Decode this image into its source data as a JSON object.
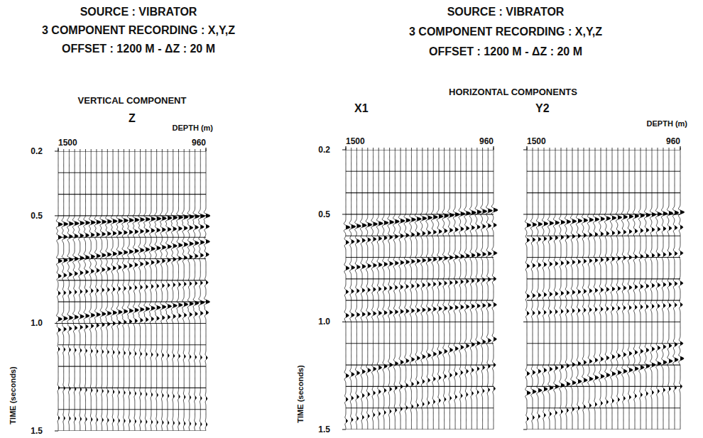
{
  "headers": [
    {
      "lines": [
        "SOURCE : VIBRATOR",
        "3 COMPONENT RECORDING : X,Y,Z",
        "OFFSET : 1200 M - ΔZ : 20 M"
      ]
    },
    {
      "lines": [
        "SOURCE : VIBRATOR",
        "3 COMPONENT RECORDING : X,Y,Z",
        "OFFSET : 1200 M - ΔZ : 20 M"
      ]
    }
  ],
  "group_titles": [
    {
      "text": "VERTICAL COMPONENT",
      "panels": [
        0
      ]
    },
    {
      "text": "HORIZONTAL COMPONENTS",
      "panels": [
        1,
        2
      ]
    }
  ],
  "chart_data": [
    {
      "type": "wiggle",
      "title": "Z",
      "x_label": "DEPTH (m)",
      "y_label": "TIME (seconds)",
      "xlim": [
        1500,
        960
      ],
      "xticks": [
        1500,
        960
      ],
      "ylim": [
        0.2,
        1.5
      ],
      "yticks": [
        0.2,
        0.5,
        {
          "value": 1,
          "label": "1.0"
        },
        1.5
      ],
      "grid": true,
      "timing_lines": [
        0.2,
        0.3,
        0.4,
        0.5,
        0.6,
        0.7,
        0.8,
        0.9,
        1.0,
        1.1,
        1.2,
        1.3,
        1.4,
        1.5
      ],
      "tick_labels": true,
      "x": [
        1500,
        1480,
        1460,
        1440,
        1420,
        1400,
        1380,
        1360,
        1340,
        1320,
        1300,
        1280,
        1260,
        1240,
        1220,
        1200,
        1180,
        1160,
        1140,
        1120,
        1100,
        1080,
        1060,
        1040,
        1020,
        1000,
        980,
        960
      ],
      "events": [
        {
          "x": [
            1500,
            960
          ],
          "values": [
            0.54,
            0.5
          ],
          "amplitude": 1.0
        },
        {
          "x": [
            1500,
            960
          ],
          "values": [
            0.6,
            0.55
          ],
          "amplitude": 0.8
        },
        {
          "x": [
            1500,
            960
          ],
          "values": [
            0.71,
            0.62
          ],
          "amplitude": 0.9
        },
        {
          "x": [
            1500,
            960
          ],
          "values": [
            0.78,
            0.68
          ],
          "amplitude": 0.7
        },
        {
          "x": [
            1500,
            960
          ],
          "values": [
            0.86,
            0.81
          ],
          "amplitude": 0.5
        },
        {
          "x": [
            1500,
            960
          ],
          "values": [
            0.98,
            0.9
          ],
          "amplitude": 0.9
        },
        {
          "x": [
            1500,
            960
          ],
          "values": [
            1.03,
            0.95
          ],
          "amplitude": 0.6
        },
        {
          "x": [
            1500,
            960
          ],
          "values": [
            1.12,
            1.16
          ],
          "amplitude": 0.35
        },
        {
          "x": [
            1500,
            960
          ],
          "values": [
            1.3,
            1.35
          ],
          "amplitude": 0.3
        },
        {
          "x": [
            1500,
            960
          ],
          "values": [
            1.44,
            1.47
          ],
          "amplitude": 0.3
        }
      ]
    },
    {
      "type": "wiggle",
      "title": "X1",
      "y_label": "TIME (seconds)",
      "xlim": [
        1500,
        960
      ],
      "xticks": [
        1500,
        960
      ],
      "ylim": [
        0.2,
        1.5
      ],
      "yticks": [
        0.2,
        0.5,
        {
          "value": 1,
          "label": "1.0"
        },
        1.5
      ],
      "grid": true,
      "timing_lines": [
        0.2,
        0.3,
        0.4,
        0.5,
        0.6,
        0.7,
        0.8,
        0.9,
        1.0,
        1.1,
        1.2,
        1.3,
        1.4,
        1.5
      ],
      "tick_labels": true,
      "x": [
        1500,
        1480,
        1460,
        1440,
        1420,
        1400,
        1380,
        1360,
        1340,
        1320,
        1300,
        1280,
        1260,
        1240,
        1220,
        1200,
        1180,
        1160,
        1140,
        1120,
        1100,
        1080,
        1060,
        1040,
        1020,
        1000,
        980,
        960
      ],
      "events": [
        {
          "x": [
            1500,
            960
          ],
          "values": [
            0.56,
            0.48
          ],
          "amplitude": 1.0
        },
        {
          "x": [
            1500,
            960
          ],
          "values": [
            0.63,
            0.55
          ],
          "amplitude": 0.7
        },
        {
          "x": [
            1500,
            960
          ],
          "values": [
            0.75,
            0.68
          ],
          "amplitude": 0.8
        },
        {
          "x": [
            1500,
            960
          ],
          "values": [
            0.86,
            0.8
          ],
          "amplitude": 0.6
        },
        {
          "x": [
            1500,
            960
          ],
          "values": [
            0.97,
            0.92
          ],
          "amplitude": 0.7
        },
        {
          "x": [
            1500,
            960
          ],
          "values": [
            1.25,
            1.08
          ],
          "amplitude": 0.7
        },
        {
          "x": [
            1500,
            960
          ],
          "values": [
            1.36,
            1.2
          ],
          "amplitude": 0.5
        },
        {
          "x": [
            1500,
            960
          ],
          "values": [
            1.46,
            1.31
          ],
          "amplitude": 0.4
        }
      ]
    },
    {
      "type": "wiggle",
      "title": "Y2",
      "x_label": "DEPTH (m)",
      "xlim": [
        1500,
        960
      ],
      "xticks": [
        1500,
        960
      ],
      "ylim": [
        0.2,
        1.5
      ],
      "yticks": [
        0.2,
        0.5,
        {
          "value": 1,
          "label": "1.0"
        },
        1.5
      ],
      "grid": true,
      "timing_lines": [
        0.2,
        0.3,
        0.4,
        0.5,
        0.6,
        0.7,
        0.8,
        0.9,
        1.0,
        1.1,
        1.2,
        1.3,
        1.4,
        1.5
      ],
      "tick_labels": "x",
      "x": [
        1500,
        1480,
        1460,
        1440,
        1420,
        1400,
        1380,
        1360,
        1340,
        1320,
        1300,
        1280,
        1260,
        1240,
        1220,
        1200,
        1180,
        1160,
        1140,
        1120,
        1100,
        1080,
        1060,
        1040,
        1020,
        1000,
        980,
        960
      ],
      "events": [
        {
          "x": [
            1500,
            960
          ],
          "values": [
            0.55,
            0.49
          ],
          "amplitude": 0.9
        },
        {
          "x": [
            1500,
            960
          ],
          "values": [
            0.62,
            0.56
          ],
          "amplitude": 0.6
        },
        {
          "x": [
            1500,
            960
          ],
          "values": [
            0.74,
            0.68
          ],
          "amplitude": 0.6
        },
        {
          "x": [
            1500,
            960
          ],
          "values": [
            0.88,
            0.82
          ],
          "amplitude": 0.6
        },
        {
          "x": [
            1500,
            960
          ],
          "values": [
            0.96,
            0.92
          ],
          "amplitude": 0.5
        },
        {
          "x": [
            1500,
            960
          ],
          "values": [
            1.24,
            1.1
          ],
          "amplitude": 0.6
        },
        {
          "x": [
            1500,
            960
          ],
          "values": [
            1.33,
            1.17
          ],
          "amplitude": 0.8
        },
        {
          "x": [
            1500,
            960
          ],
          "values": [
            1.45,
            1.3
          ],
          "amplitude": 0.4
        }
      ]
    }
  ]
}
